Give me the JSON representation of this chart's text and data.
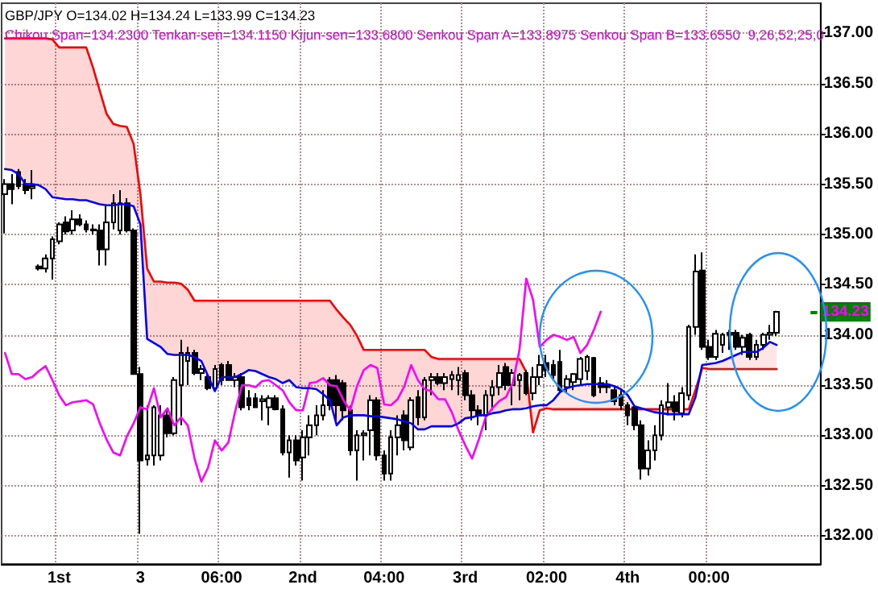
{
  "chart_data": {
    "type": "candlestick",
    "title": "GBP/JPY O=134.02 H=134.24 L=133.99 C=134.23",
    "subtitle": "Chikou Span=134.2300 Tenkan-sen=134.1150 Kijun-sen=133.6800 Senkou Span A=133.8975 Senkou Span B=133.6550  9,26,52,25,0",
    "categories": [
      null,
      null,
      null,
      null,
      null,
      null,
      null,
      null,
      "1st",
      null,
      null,
      null,
      null,
      null,
      null,
      null,
      null,
      null,
      null,
      null,
      "3",
      null,
      null,
      null,
      null,
      null,
      null,
      null,
      null,
      null,
      null,
      null,
      "06:00",
      null,
      null,
      null,
      null,
      null,
      null,
      null,
      null,
      null,
      null,
      null,
      "2nd",
      null,
      null,
      null,
      null,
      null,
      null,
      null,
      null,
      null,
      null,
      null,
      "04:00",
      null,
      null,
      null,
      null,
      null,
      null,
      null,
      null,
      null,
      null,
      null,
      "3rd",
      null,
      null,
      null,
      null,
      null,
      null,
      null,
      null,
      null,
      null,
      null,
      "02:00",
      null,
      null,
      null,
      null,
      null,
      null,
      null,
      null,
      null,
      null,
      null,
      "4th",
      null,
      null,
      null,
      null,
      null,
      null,
      null,
      null,
      null,
      null,
      null,
      "00:00",
      null,
      null,
      null,
      null,
      null,
      null,
      null,
      null,
      null,
      null,
      null,
      null,
      null,
      null,
      null,
      null
    ],
    "ohlc": [
      [
        135.4,
        135.55,
        135.01,
        135.5
      ],
      [
        135.5,
        135.6,
        135.3,
        135.45
      ],
      [
        135.62,
        135.65,
        135.45,
        135.48
      ],
      [
        135.5,
        135.55,
        135.4,
        135.44
      ],
      [
        135.46,
        135.64,
        135.35,
        135.48
      ],
      [
        134.68,
        134.7,
        134.64,
        134.66
      ],
      [
        134.66,
        134.8,
        134.62,
        134.76
      ],
      [
        134.76,
        134.98,
        134.55,
        134.95
      ],
      [
        134.93,
        135.12,
        134.9,
        135.1
      ],
      [
        135.12,
        135.18,
        135.0,
        135.03
      ],
      [
        135.04,
        135.24,
        135.0,
        135.15
      ],
      [
        135.15,
        135.2,
        135.08,
        135.1
      ],
      [
        135.1,
        135.14,
        135.02,
        135.05
      ],
      [
        135.05,
        135.1,
        135.0,
        135.04
      ],
      [
        135.04,
        135.1,
        134.69,
        134.85
      ],
      [
        134.85,
        135.28,
        134.69,
        135.12
      ],
      [
        135.12,
        135.4,
        135.05,
        135.31
      ],
      [
        135.04,
        135.44,
        135.0,
        135.31
      ],
      [
        135.31,
        135.36,
        135.02,
        135.04
      ],
      [
        135.04,
        135.06,
        133.61,
        133.61
      ],
      [
        133.61,
        133.68,
        132.02,
        132.75
      ],
      [
        132.76,
        133.3,
        132.7,
        132.8
      ],
      [
        132.8,
        133.3,
        132.7,
        133.28
      ],
      [
        132.8,
        133.3,
        132.75,
        133.2
      ],
      [
        133.2,
        133.26,
        132.98,
        133.02
      ],
      [
        133.02,
        133.58,
        133.0,
        133.55
      ],
      [
        133.5,
        133.95,
        133.1,
        133.82
      ],
      [
        133.74,
        133.88,
        133.5,
        133.82
      ],
      [
        133.82,
        133.85,
        133.6,
        133.62
      ],
      [
        133.62,
        133.7,
        133.55,
        133.66
      ],
      [
        133.58,
        133.62,
        133.45,
        133.47
      ],
      [
        133.47,
        133.7,
        133.45,
        133.66
      ],
      [
        133.7,
        133.72,
        133.5,
        133.55
      ],
      [
        133.7,
        133.74,
        133.55,
        133.55
      ],
      [
        133.55,
        133.62,
        133.48,
        133.58
      ],
      [
        133.58,
        133.62,
        133.25,
        133.28
      ],
      [
        133.37,
        133.45,
        133.25,
        133.3
      ],
      [
        133.37,
        133.42,
        133.28,
        133.28
      ],
      [
        133.34,
        133.4,
        133.15,
        133.36
      ],
      [
        133.28,
        133.4,
        133.1,
        133.37
      ],
      [
        133.37,
        133.4,
        133.25,
        133.26
      ],
      [
        133.26,
        133.3,
        132.8,
        132.83
      ],
      [
        132.83,
        133.0,
        132.58,
        132.95
      ],
      [
        132.95,
        133.0,
        132.7,
        132.75
      ],
      [
        132.78,
        133.05,
        132.55,
        132.98
      ],
      [
        132.98,
        133.2,
        132.8,
        133.1
      ],
      [
        133.1,
        133.3,
        133.0,
        133.2
      ],
      [
        133.2,
        133.45,
        133.15,
        133.3
      ],
      [
        133.55,
        133.58,
        133.25,
        133.3
      ],
      [
        133.55,
        133.6,
        133.15,
        133.3
      ],
      [
        133.52,
        133.55,
        133.15,
        133.25
      ],
      [
        133.25,
        133.3,
        132.8,
        132.85
      ],
      [
        132.85,
        133.05,
        132.55,
        133.0
      ],
      [
        133.0,
        133.05,
        132.75,
        133.02
      ],
      [
        133.05,
        133.4,
        132.8,
        133.35
      ],
      [
        133.35,
        133.38,
        132.75,
        132.8
      ],
      [
        132.8,
        132.85,
        132.55,
        132.62
      ],
      [
        132.62,
        133.05,
        132.55,
        132.98
      ],
      [
        132.98,
        133.2,
        132.8,
        133.1
      ],
      [
        133.2,
        133.25,
        132.85,
        132.95
      ],
      [
        132.88,
        133.38,
        132.85,
        133.35
      ],
      [
        133.38,
        133.45,
        133.1,
        133.18
      ],
      [
        133.18,
        133.58,
        133.15,
        133.55
      ],
      [
        133.55,
        133.62,
        133.4,
        133.58
      ],
      [
        133.58,
        133.62,
        133.5,
        133.52
      ],
      [
        133.52,
        133.62,
        133.45,
        133.58
      ],
      [
        133.56,
        133.64,
        133.45,
        133.6
      ],
      [
        133.55,
        133.68,
        133.4,
        133.6
      ],
      [
        133.62,
        133.65,
        133.35,
        133.4
      ],
      [
        133.4,
        133.45,
        133.15,
        133.25
      ],
      [
        133.25,
        133.3,
        133.1,
        133.2
      ],
      [
        133.2,
        133.45,
        133.05,
        133.4
      ],
      [
        133.4,
        133.55,
        133.25,
        133.48
      ],
      [
        133.48,
        133.7,
        133.4,
        133.62
      ],
      [
        133.68,
        133.72,
        133.45,
        133.5
      ],
      [
        133.5,
        133.66,
        133.3,
        133.62
      ],
      [
        133.55,
        133.62,
        133.35,
        133.6
      ],
      [
        133.62,
        133.65,
        133.4,
        133.42
      ],
      [
        133.42,
        133.68,
        133.35,
        133.58
      ],
      [
        133.58,
        133.8,
        133.5,
        133.7
      ],
      [
        133.72,
        133.8,
        133.58,
        133.65
      ],
      [
        133.7,
        133.75,
        133.55,
        133.6
      ],
      [
        133.73,
        133.85,
        133.43,
        133.45
      ],
      [
        133.48,
        133.6,
        133.42,
        133.56
      ],
      [
        133.53,
        133.62,
        133.45,
        133.61
      ],
      [
        133.56,
        133.78,
        133.5,
        133.76
      ],
      [
        133.64,
        133.8,
        133.55,
        133.78
      ],
      [
        133.77,
        133.78,
        133.38,
        133.4
      ],
      [
        133.52,
        133.58,
        133.42,
        133.48
      ],
      [
        133.5,
        133.55,
        133.42,
        133.48
      ],
      [
        133.45,
        133.5,
        133.3,
        133.34
      ],
      [
        133.4,
        133.45,
        133.25,
        133.3
      ],
      [
        133.3,
        133.33,
        133.1,
        133.2
      ],
      [
        133.28,
        133.3,
        133.05,
        133.1
      ],
      [
        133.1,
        133.15,
        132.56,
        132.67
      ],
      [
        132.67,
        132.95,
        132.6,
        132.85
      ],
      [
        132.85,
        133.1,
        132.75,
        133.0
      ],
      [
        133.0,
        133.35,
        132.95,
        133.3
      ],
      [
        133.28,
        133.52,
        133.2,
        133.33
      ],
      [
        133.33,
        133.4,
        133.15,
        133.24
      ],
      [
        133.22,
        133.48,
        133.18,
        133.42
      ],
      [
        133.4,
        134.1,
        133.35,
        134.08
      ],
      [
        134.08,
        134.8,
        134.0,
        134.63
      ],
      [
        134.64,
        134.82,
        133.85,
        133.88
      ],
      [
        133.88,
        133.95,
        133.75,
        133.78
      ],
      [
        133.78,
        134.05,
        133.75,
        134.01
      ],
      [
        133.9,
        134.02,
        133.82,
        134.0
      ],
      [
        134.02,
        134.05,
        133.85,
        134.0
      ],
      [
        134.02,
        134.05,
        133.85,
        133.88
      ],
      [
        133.88,
        134.0,
        133.8,
        133.97
      ],
      [
        134.0,
        134.02,
        133.75,
        133.78
      ],
      [
        133.78,
        133.95,
        133.75,
        133.9
      ],
      [
        133.9,
        134.02,
        133.85,
        134.0
      ],
      [
        134.0,
        134.1,
        133.95,
        134.02
      ],
      [
        134.02,
        134.24,
        133.99,
        134.23
      ],
      null,
      null,
      null,
      null,
      null,
      null
    ],
    "series": [
      {
        "type": "line",
        "color": "#ff00ff",
        "values": [
          133.82,
          133.61,
          133.61,
          133.56,
          133.58,
          133.64,
          133.69,
          133.55,
          133.4,
          133.3,
          133.33,
          133.34,
          133.35,
          133.31,
          133.12,
          132.96,
          132.83,
          132.8,
          132.99,
          133.12,
          133.28,
          133.26,
          133.47,
          133.18,
          133.27,
          133.1,
          133.18,
          133.1,
          132.77,
          132.54,
          132.68,
          132.95,
          132.85,
          132.93,
          133.24,
          133.5,
          133.5,
          133.48,
          133.54,
          133.55,
          133.5,
          133.45,
          133.33,
          133.25,
          133.25,
          133.52,
          133.53,
          133.57,
          133.5,
          133.49,
          133.35,
          133.25,
          133.49,
          133.65,
          133.7,
          133.67,
          133.31,
          133.3,
          133.36,
          133.49,
          133.7,
          133.55,
          133.46,
          133.44,
          133.36,
          133.36,
          133.23,
          133.05,
          132.9,
          132.77,
          132.96,
          133.18,
          133.27,
          133.34,
          133.38,
          133.52,
          133.85,
          134.56,
          134.35,
          133.88,
          133.95,
          134.0,
          133.98,
          133.95,
          133.98,
          133.82,
          133.9,
          134.05,
          134.23,
          null,
          null,
          null,
          null,
          null,
          null,
          null,
          null,
          null,
          null,
          null,
          null,
          null,
          null,
          null,
          null,
          null,
          null,
          null,
          null,
          null,
          null,
          null,
          null,
          null,
          null,
          null,
          null,
          null,
          null,
          null,
          null
        ]
      },
      {
        "type": "line",
        "color": "#0000ff",
        "values": [
          135.65,
          135.64,
          135.6,
          135.5,
          135.5,
          135.49,
          135.45,
          135.37,
          135.36,
          135.35,
          135.35,
          135.34,
          135.34,
          135.32,
          135.3,
          135.29,
          135.29,
          135.3,
          135.3,
          135.28,
          135.1,
          133.96,
          133.92,
          133.88,
          133.81,
          133.8,
          133.8,
          133.8,
          133.78,
          133.74,
          133.59,
          133.44,
          133.58,
          133.58,
          133.58,
          133.61,
          133.65,
          133.64,
          133.61,
          133.58,
          133.56,
          133.52,
          133.55,
          133.48,
          133.47,
          133.47,
          133.46,
          133.41,
          133.35,
          133.1,
          133.18,
          133.2,
          133.2,
          133.2,
          133.19,
          133.19,
          133.18,
          133.17,
          133.16,
          133.14,
          133.12,
          133.06,
          133.06,
          133.09,
          133.09,
          133.09,
          133.09,
          133.12,
          133.17,
          133.18,
          133.2,
          133.2,
          133.22,
          133.23,
          133.25,
          133.26,
          133.26,
          133.27,
          133.29,
          133.3,
          133.3,
          133.35,
          133.43,
          133.47,
          133.49,
          133.5,
          133.51,
          133.51,
          133.51,
          133.51,
          133.49,
          133.46,
          133.4,
          133.29,
          133.27,
          133.25,
          133.23,
          133.22,
          133.21,
          133.21,
          133.21,
          133.21,
          133.38,
          133.7,
          133.71,
          133.72,
          133.74,
          133.77,
          133.8,
          133.83,
          133.83,
          133.83,
          133.87,
          133.93,
          133.9,
          null,
          null,
          null,
          null,
          null,
          null
        ]
      },
      {
        "type": "line",
        "color": "#ff0000",
        "values": [
          136.95,
          136.95,
          136.95,
          136.95,
          136.95,
          136.95,
          136.95,
          136.94,
          136.86,
          136.86,
          136.86,
          136.86,
          136.86,
          136.66,
          136.43,
          136.2,
          136.1,
          136.08,
          136.07,
          135.9,
          135.4,
          134.66,
          134.53,
          134.53,
          134.52,
          134.52,
          134.51,
          134.45,
          134.34,
          134.34,
          134.34,
          134.34,
          134.34,
          134.34,
          134.34,
          134.34,
          134.34,
          134.34,
          134.34,
          134.34,
          134.34,
          134.34,
          134.34,
          134.34,
          134.34,
          134.34,
          134.34,
          134.34,
          134.34,
          134.25,
          134.17,
          134.1,
          133.99,
          133.85,
          133.85,
          133.85,
          133.85,
          133.85,
          133.85,
          133.85,
          133.85,
          133.85,
          133.85,
          133.78,
          133.76,
          133.76,
          133.76,
          133.76,
          133.76,
          133.76,
          133.76,
          133.76,
          133.76,
          133.76,
          133.76,
          133.76,
          133.76,
          133.63,
          133.03,
          133.25,
          133.27,
          133.26,
          133.26,
          133.26,
          133.26,
          133.26,
          133.26,
          133.26,
          133.26,
          133.26,
          133.26,
          133.26,
          133.26,
          133.26,
          133.26,
          133.26,
          133.26,
          133.26,
          133.26,
          133.26,
          133.26,
          133.26,
          133.45,
          133.67,
          133.66,
          133.66,
          133.66,
          133.66,
          133.66,
          133.66,
          133.66,
          133.66,
          133.66,
          133.66,
          133.66,
          null,
          null,
          null,
          null,
          null,
          null
        ],
        "lower": [
          135.65,
          135.64,
          135.6,
          135.5,
          135.5,
          135.49,
          135.45,
          135.37,
          135.36,
          135.35,
          135.35,
          135.34,
          135.34,
          135.32,
          135.3,
          135.29,
          135.29,
          135.3,
          135.3,
          135.28,
          135.1,
          133.96,
          133.92,
          133.88,
          133.81,
          133.8,
          133.8,
          133.8,
          133.78,
          133.74,
          133.59,
          133.44,
          133.58,
          133.58,
          133.58,
          133.61,
          133.65,
          133.64,
          133.61,
          133.58,
          133.56,
          133.52,
          133.55,
          133.48,
          133.47,
          133.47,
          133.46,
          133.41,
          133.35,
          133.1,
          133.18,
          133.2,
          133.2,
          133.2,
          133.19,
          133.19,
          133.18,
          133.17,
          133.16,
          133.14,
          133.12,
          133.06,
          133.06,
          133.09,
          133.09,
          133.09,
          133.09,
          133.12,
          133.17,
          133.18,
          133.2,
          133.2,
          133.22,
          133.23,
          133.25,
          133.26,
          133.26,
          133.27,
          133.29,
          133.3,
          133.3,
          133.35,
          133.43,
          133.47,
          133.49,
          133.5,
          133.51,
          133.51,
          133.51,
          133.51,
          133.49,
          133.46,
          133.4,
          133.29,
          133.27,
          133.25,
          133.23,
          133.22,
          133.21,
          133.21,
          133.21,
          133.21,
          133.38,
          133.7,
          133.71,
          133.72,
          133.74,
          133.77,
          133.8,
          133.83,
          133.83,
          133.83,
          133.87,
          133.93,
          133.9,
          null,
          null,
          null,
          null,
          null,
          null
        ],
        "upper": [
          136.95,
          136.95,
          136.95,
          136.95,
          136.95,
          136.95,
          136.95,
          136.94,
          136.86,
          136.86,
          136.86,
          136.86,
          136.86,
          136.66,
          136.43,
          136.2,
          136.1,
          136.08,
          136.07,
          135.9,
          135.4,
          134.66,
          134.53,
          134.53,
          134.52,
          134.52,
          134.51,
          134.45,
          134.34,
          134.34,
          134.34,
          134.34,
          134.34,
          134.34,
          134.34,
          134.34,
          134.34,
          134.34,
          134.34,
          134.34,
          134.34,
          134.34,
          134.34,
          134.34,
          134.34,
          134.34,
          134.34,
          134.34,
          134.34,
          134.25,
          134.17,
          134.1,
          133.99,
          133.85,
          133.85,
          133.85,
          133.85,
          133.85,
          133.85,
          133.85,
          133.85,
          133.85,
          133.85,
          133.78,
          133.76,
          133.76,
          133.76,
          133.76,
          133.76,
          133.76,
          133.76,
          133.76,
          133.76,
          133.76,
          133.76,
          133.76,
          133.76,
          133.63,
          133.03,
          133.25,
          133.27,
          133.26,
          133.26,
          133.26,
          133.26,
          133.26,
          133.26,
          133.26,
          133.26,
          133.26,
          133.26,
          133.26,
          133.26,
          133.26,
          133.26,
          133.26,
          133.26,
          133.26,
          133.26,
          133.26,
          133.26,
          133.26,
          133.45,
          133.67,
          133.66,
          133.66,
          133.66,
          133.66,
          133.66,
          133.66,
          133.66,
          133.66,
          133.66,
          133.66,
          133.66,
          null,
          null,
          null,
          null,
          null,
          null
        ]
      }
    ],
    "ylim": [
      131.72,
      137.3
    ],
    "yticks": [
      {
        "value": 132,
        "label": "132.00"
      },
      {
        "value": 132.5,
        "label": "132.50"
      },
      {
        "value": 133,
        "label": "133.00"
      },
      {
        "value": 133.5,
        "label": "133.50"
      },
      {
        "value": 134,
        "label": "134.00"
      },
      {
        "value": 134.5,
        "label": "134.50"
      },
      {
        "value": 135,
        "label": "135.00"
      },
      {
        "value": 135.5,
        "label": "135.50"
      },
      {
        "value": 136,
        "label": "136.00"
      },
      {
        "value": 136.5,
        "label": "136.50"
      },
      {
        "value": 137,
        "label": "137.00"
      }
    ],
    "ref_lines": [
      {
        "axis": "y",
        "value": 134.23,
        "label": "134.23",
        "color": "#008000"
      }
    ],
    "grid": true,
    "marker": "none",
    "line_style": "solid"
  }
}
